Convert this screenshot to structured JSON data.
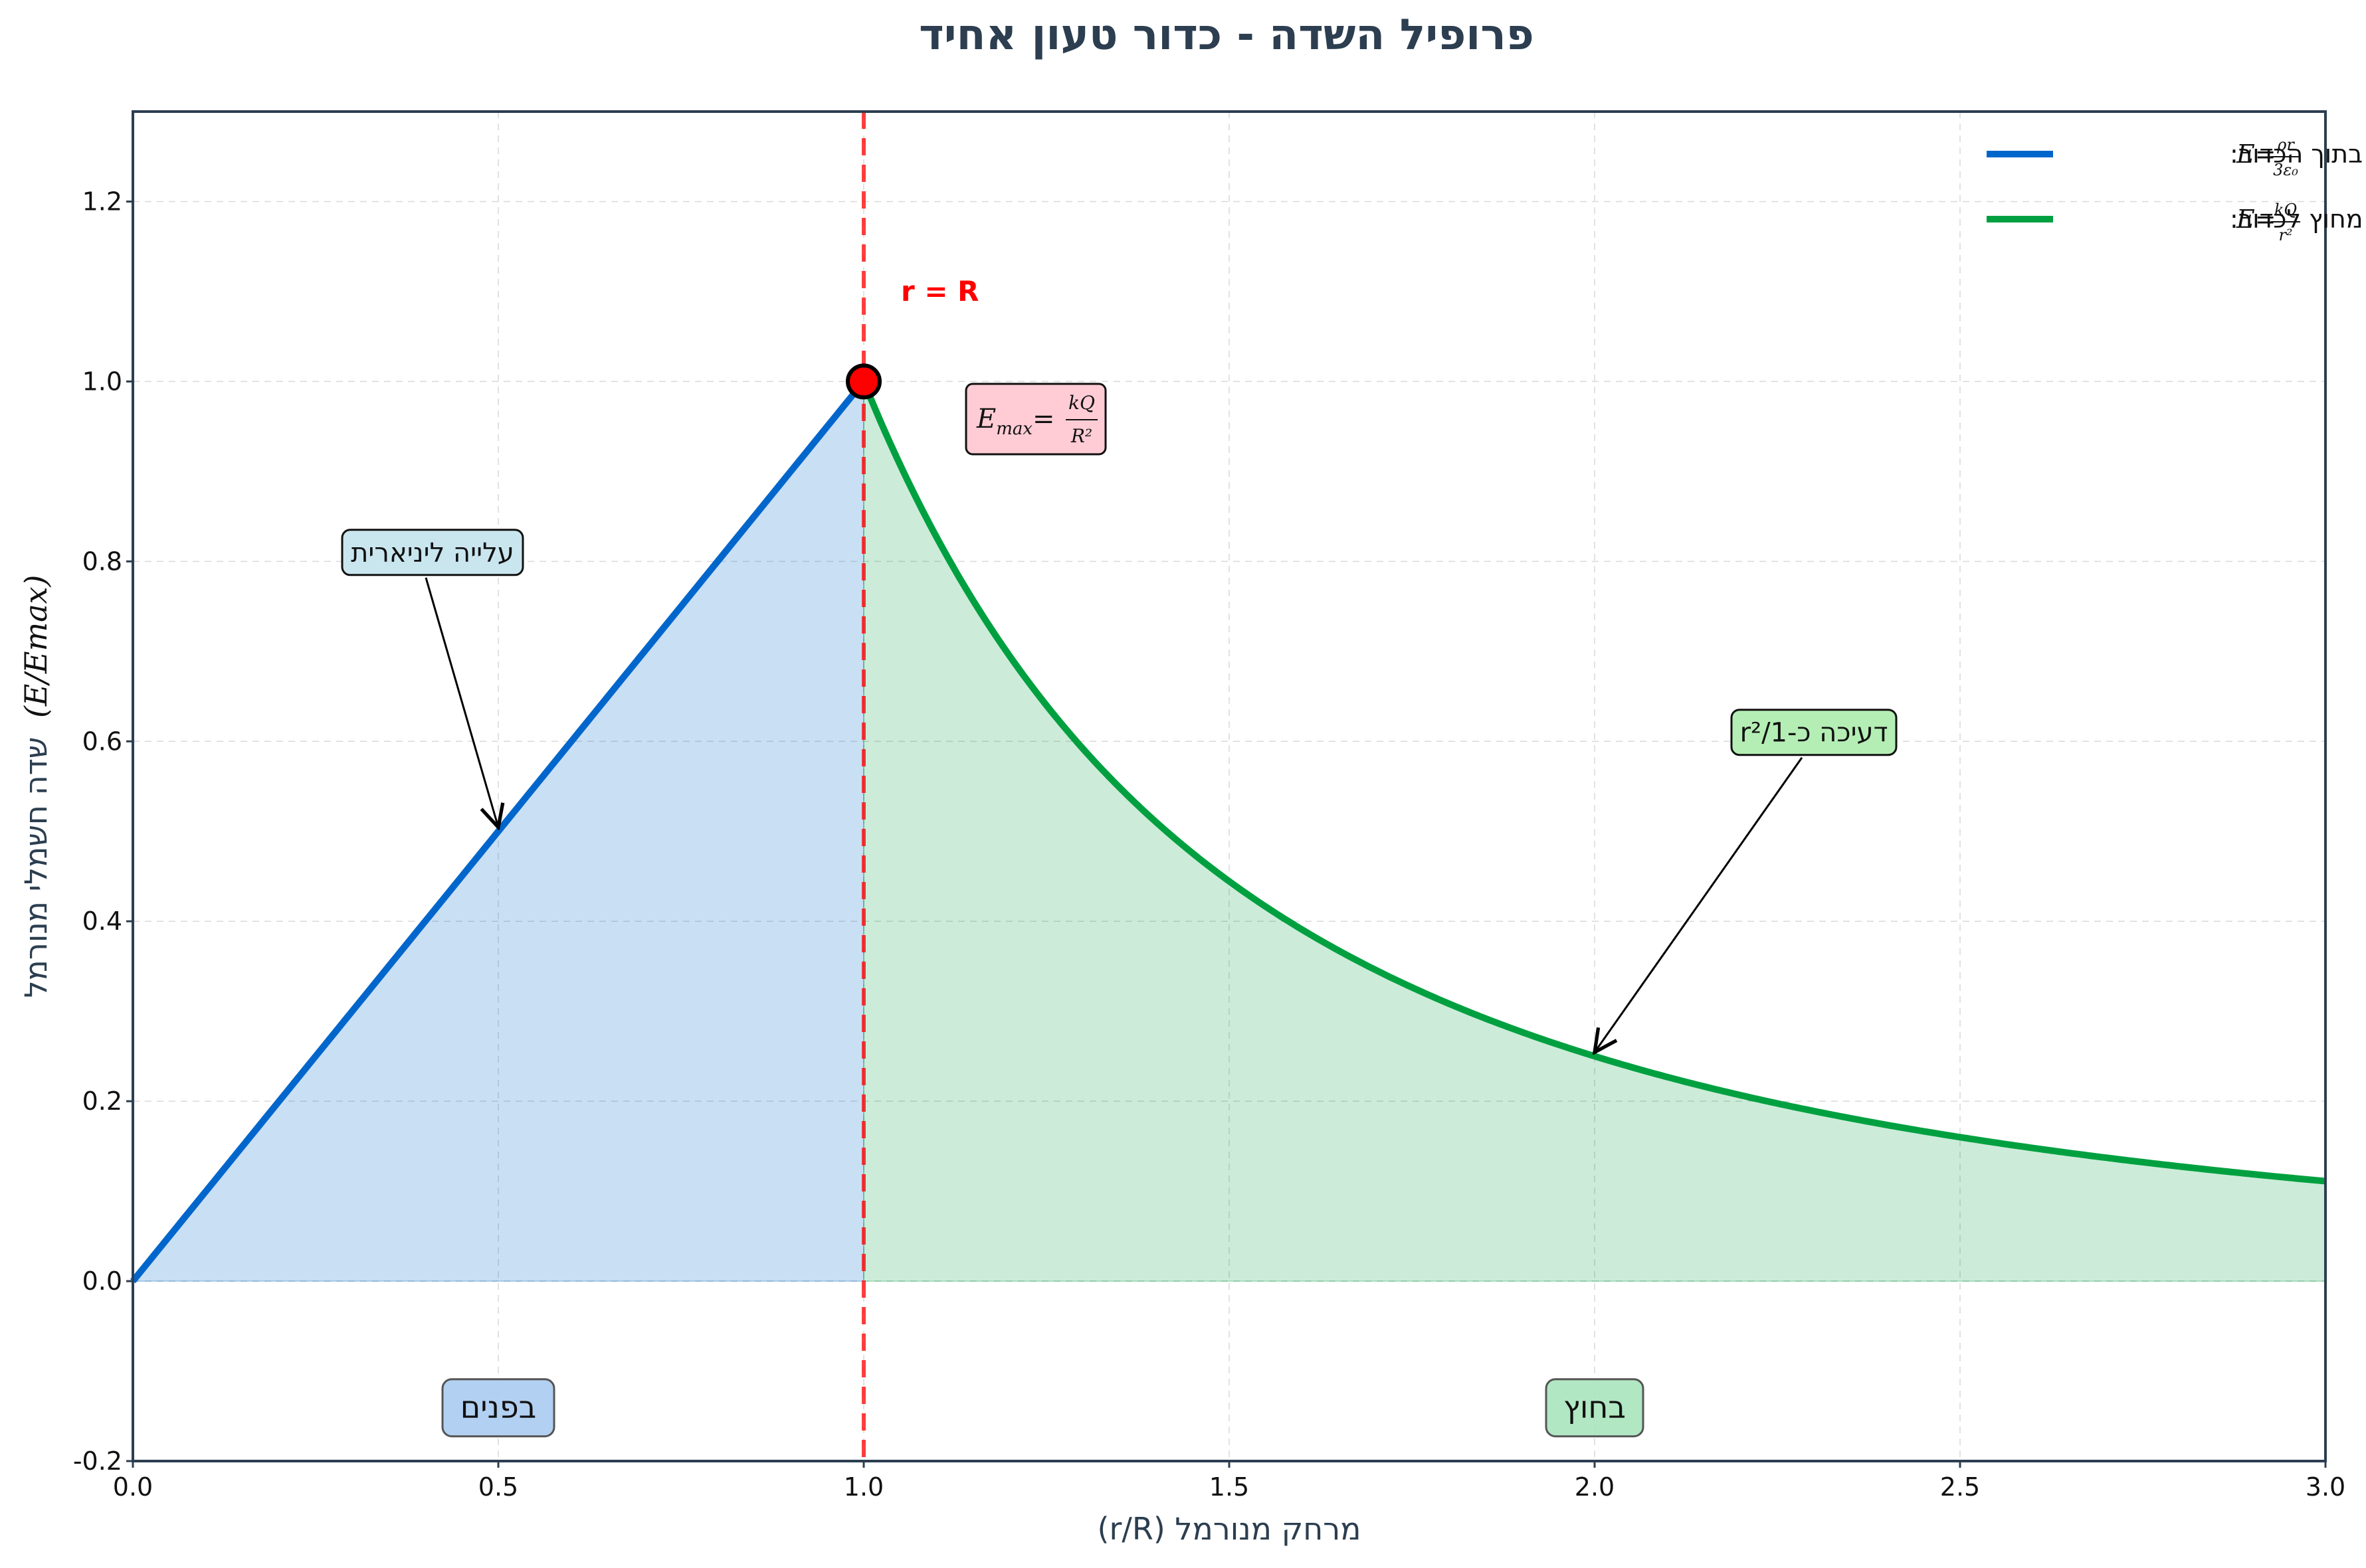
{
  "chart_data": {
    "type": "line",
    "title": "פרופיל השדה - כדור טעון אחיד",
    "xlabel": "מרחק מנורמל (r/R)",
    "ylabel": "שדה חשמלי מנורמל",
    "ylabel_math": "(E/Emax)",
    "xlim": [
      0,
      3
    ],
    "ylim": [
      -0.2,
      1.3
    ],
    "x_ticks": [
      0.0,
      0.5,
      1.0,
      1.5,
      2.0,
      2.5,
      3.0
    ],
    "x_tick_labels": [
      "0.0",
      "0.5",
      "1.0",
      "1.5",
      "2.0",
      "2.5",
      "3.0"
    ],
    "y_ticks": [
      -0.2,
      0.0,
      0.2,
      0.4,
      0.6,
      0.8,
      1.0,
      1.2
    ],
    "y_tick_labels": [
      "-0.2",
      "0.0",
      "0.2",
      "0.4",
      "0.6",
      "0.8",
      "1.0",
      "1.2"
    ],
    "grid": true,
    "legend_position": "top-right",
    "series": [
      {
        "name": "בתוך הכדור:",
        "formula": "E=ρr/3ε₀",
        "color": "#0066cc",
        "x": [
          0.0,
          0.25,
          0.5,
          0.75,
          1.0
        ],
        "y": [
          0.0,
          0.25,
          0.5,
          0.75,
          1.0
        ]
      },
      {
        "name": "מחוץ לכדור:",
        "formula": "E=kQ/r²",
        "color": "#00a040",
        "x": [
          1.0,
          1.25,
          1.5,
          1.75,
          2.0,
          2.25,
          2.5,
          2.75,
          3.0
        ],
        "y": [
          1.0,
          0.64,
          0.444,
          0.327,
          0.25,
          0.198,
          0.16,
          0.132,
          0.111
        ]
      }
    ],
    "boundary": {
      "x": 1.0,
      "label": "r = R",
      "color": "#ff0000"
    },
    "max_point": {
      "x": 1.0,
      "y": 1.0,
      "label": "Emax=kQ/R²"
    },
    "annotations": [
      {
        "text": "עלייה ליניארית",
        "point_x": 0.5,
        "point_y": 0.5,
        "box_x": 0.41,
        "box_y": 0.81
      },
      {
        "text": "דעיכה כ-1/r²",
        "point_x": 2.0,
        "point_y": 0.25,
        "box_x": 2.3,
        "box_y": 0.61
      }
    ],
    "region_labels": [
      {
        "text": "בפנים",
        "x": 0.5,
        "y": -0.14
      },
      {
        "text": "בחוץ",
        "x": 2.0,
        "y": -0.14
      }
    ]
  }
}
